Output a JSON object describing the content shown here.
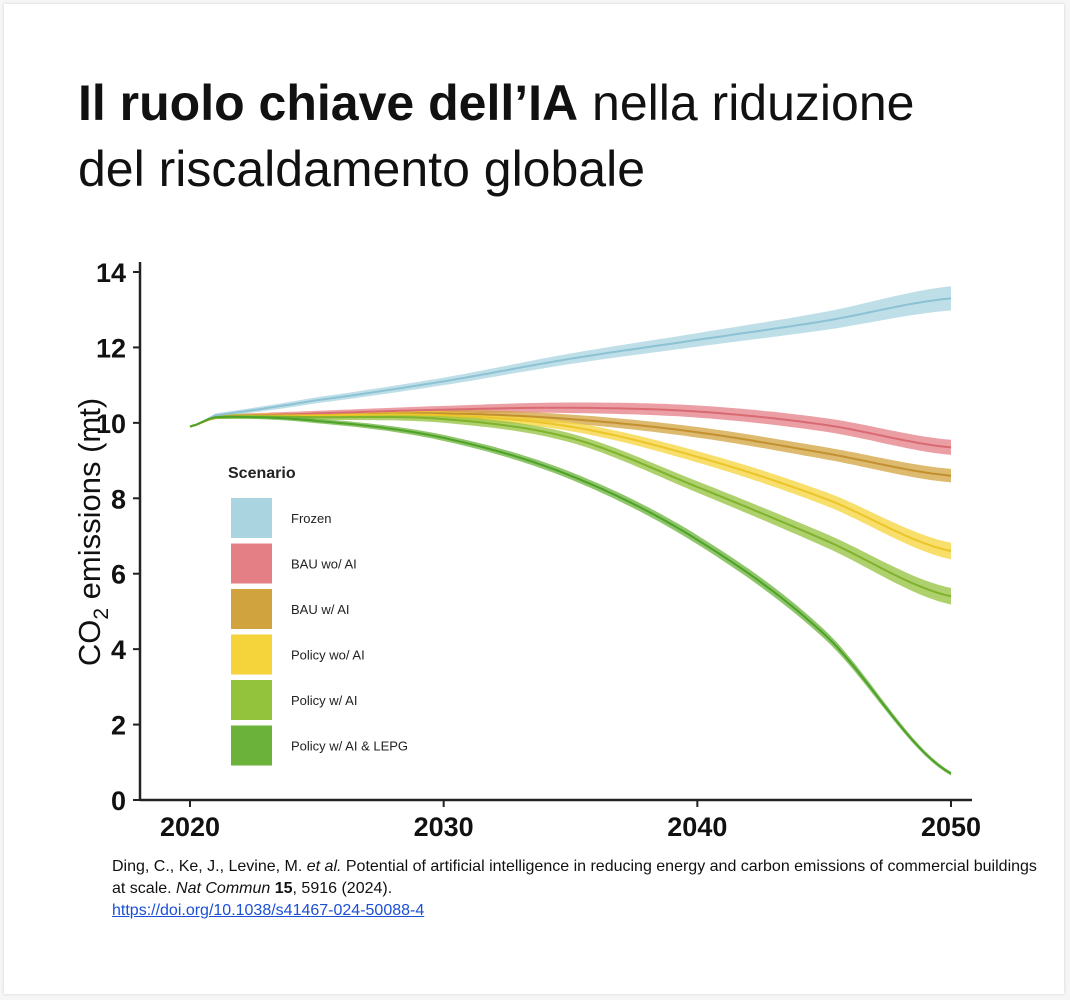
{
  "title": {
    "bold": "Il ruolo chiave dell’IA",
    "rest_line1": " nella riduzione",
    "line2": "del riscaldamento globale"
  },
  "chart_data": {
    "type": "area",
    "xlabel": "",
    "ylabel_main": "CO",
    "ylabel_sub": "2",
    "ylabel_rest": " emissions (mt)",
    "xlim": [
      2020,
      2050
    ],
    "ylim": [
      0,
      14
    ],
    "x_ticks": [
      "2020",
      "2030",
      "2040",
      "2050"
    ],
    "y_ticks": [
      "0",
      "2",
      "4",
      "6",
      "8",
      "10",
      "12",
      "14"
    ],
    "grid": false,
    "legend_title": "Scenario",
    "legend_position": "left-center",
    "x": [
      2020,
      2021,
      2025,
      2030,
      2035,
      2040,
      2045,
      2050
    ],
    "series": [
      {
        "name": "Frozen",
        "color": "#a9d4e0",
        "line": "#8cc2d4",
        "values": [
          9.9,
          10.2,
          10.6,
          11.1,
          11.7,
          12.2,
          12.7,
          13.3
        ],
        "band": [
          0.0,
          0.05,
          0.08,
          0.1,
          0.14,
          0.18,
          0.24,
          0.32
        ]
      },
      {
        "name": "BAU wo/ AI",
        "color": "#e47f86",
        "line": "#d96a72",
        "values": [
          9.9,
          10.15,
          10.25,
          10.35,
          10.4,
          10.3,
          9.95,
          9.35
        ],
        "band": [
          0.0,
          0.05,
          0.07,
          0.1,
          0.14,
          0.16,
          0.18,
          0.2
        ]
      },
      {
        "name": "BAU w/ AI",
        "color": "#d1a33e",
        "line": "#c39030",
        "values": [
          9.9,
          10.15,
          10.2,
          10.25,
          10.1,
          9.75,
          9.2,
          8.6
        ],
        "band": [
          0.0,
          0.05,
          0.07,
          0.1,
          0.12,
          0.14,
          0.16,
          0.18
        ]
      },
      {
        "name": "Policy wo/ AI",
        "color": "#f5d33a",
        "line": "#ecc52a",
        "values": [
          9.9,
          10.15,
          10.2,
          10.2,
          9.9,
          9.1,
          8.0,
          6.6
        ],
        "band": [
          0.0,
          0.05,
          0.07,
          0.1,
          0.12,
          0.15,
          0.18,
          0.22
        ]
      },
      {
        "name": "Policy w/ AI",
        "color": "#93c23d",
        "line": "#7fb22d",
        "values": [
          9.9,
          10.15,
          10.15,
          10.1,
          9.6,
          8.3,
          6.9,
          5.4
        ],
        "band": [
          0.0,
          0.05,
          0.07,
          0.1,
          0.12,
          0.15,
          0.18,
          0.22
        ]
      },
      {
        "name": "Policy w/ AI & LEPG",
        "color": "#6ab23a",
        "line": "#4ea22a",
        "values": [
          9.9,
          10.15,
          10.05,
          9.6,
          8.6,
          6.9,
          4.4,
          0.7
        ],
        "band": [
          0.0,
          0.04,
          0.06,
          0.08,
          0.1,
          0.12,
          0.12,
          0.05
        ]
      }
    ]
  },
  "citation": {
    "authors": "Ding, C., Ke, J., Levine, M. ",
    "etal": "et al.",
    "text": " Potential of artificial intelligence in reducing energy and carbon emissions of commercial buildings at scale. ",
    "journal": "Nat Commun",
    "volume": "15",
    "rest": ", 5916 (2024).",
    "link": "https://doi.org/10.1038/s41467-024-50088-4"
  }
}
